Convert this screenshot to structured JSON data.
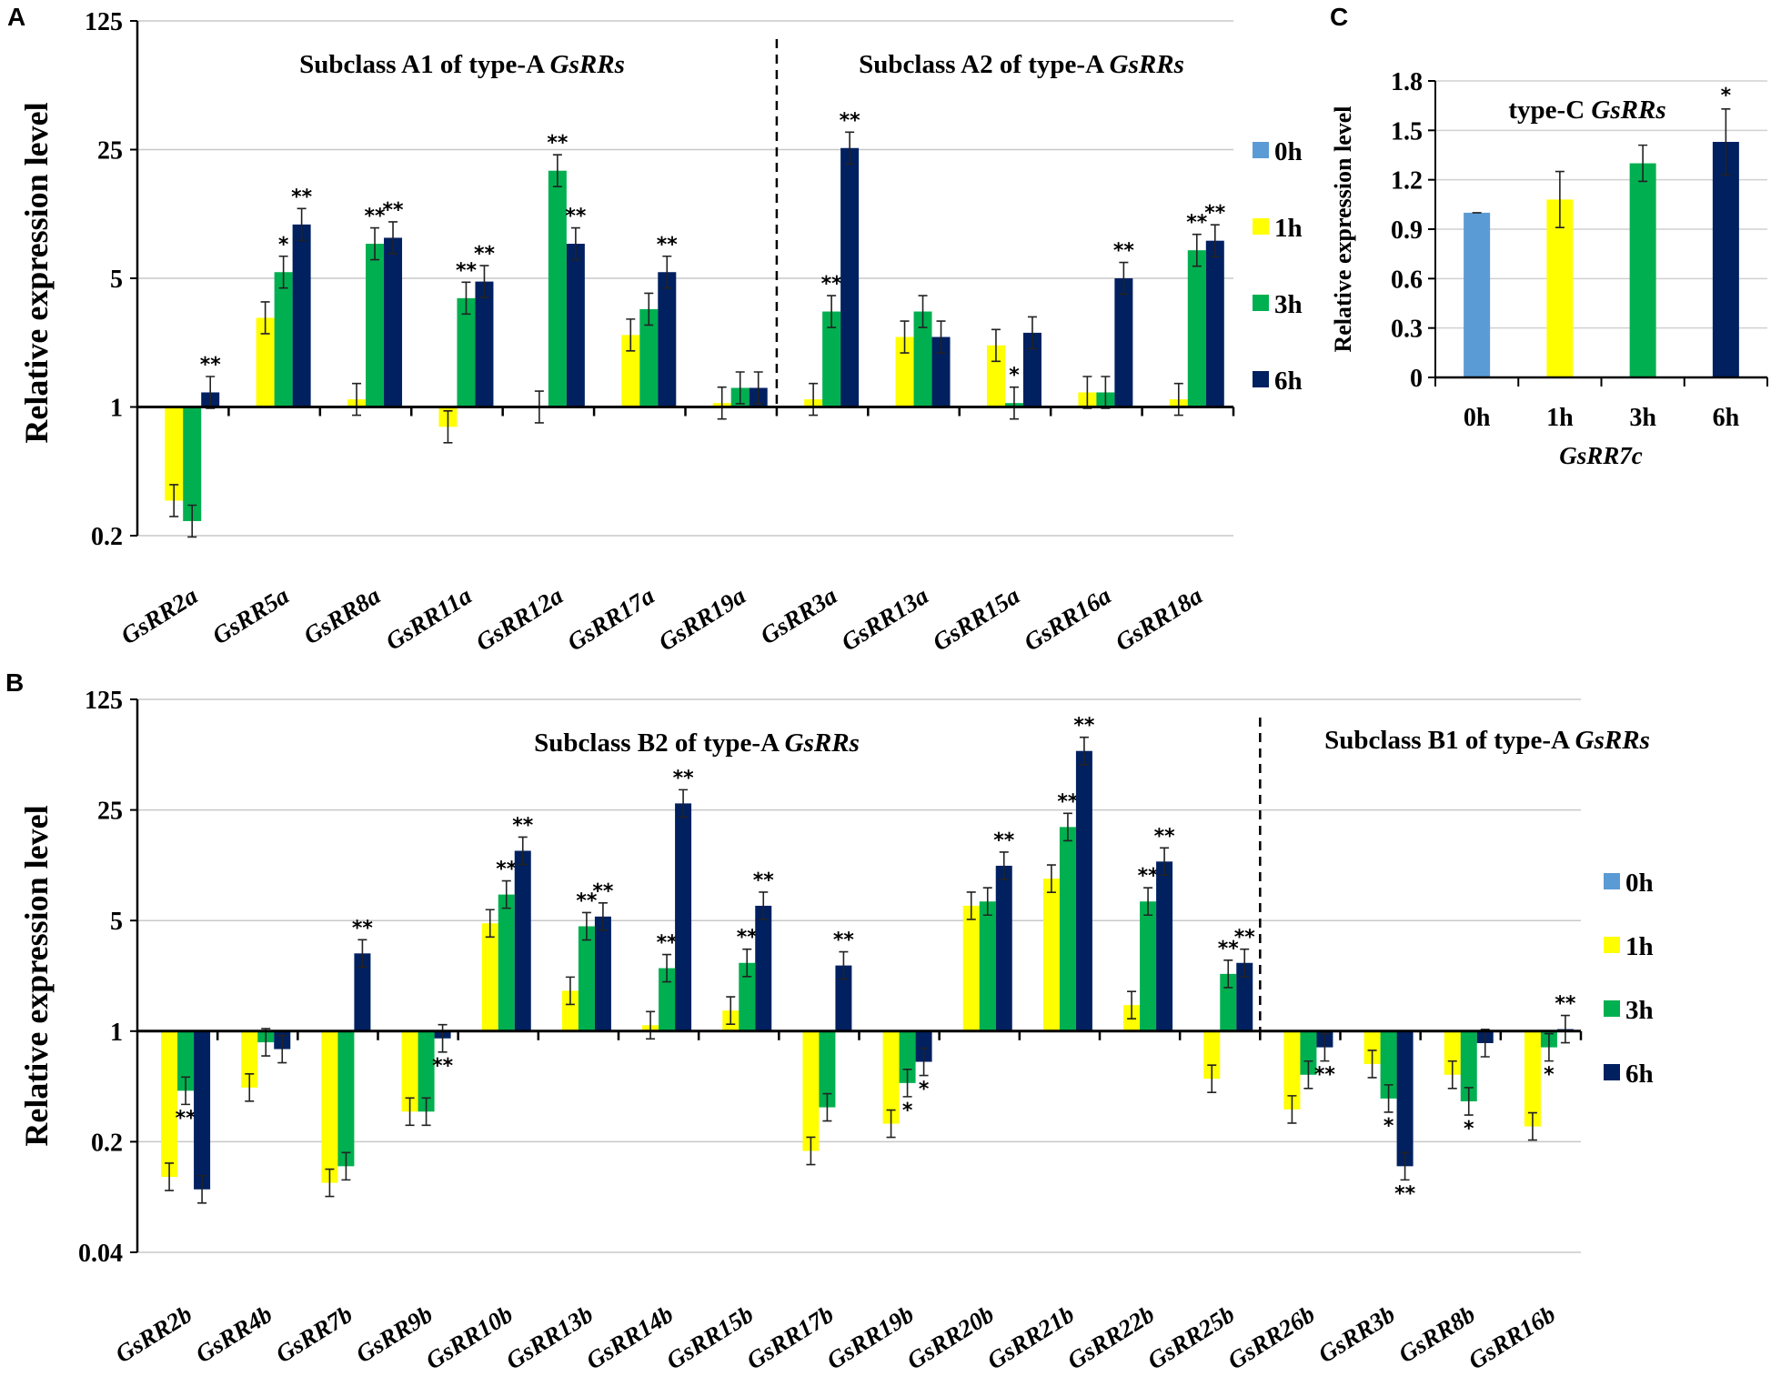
{
  "legend": [
    "0h",
    "1h",
    "3h",
    "6h"
  ],
  "colors": {
    "0h": "#5b9bd5",
    "1h": "#ffff00",
    "3h": "#00b050",
    "6h": "#002060"
  },
  "chart_data": [
    {
      "panel": "A",
      "type": "bar",
      "yscale": "log5",
      "ylabel": "Relative expression level",
      "yticks": [
        "0.2",
        "1",
        "5",
        "25",
        "125"
      ],
      "ylim": [
        0.2,
        125
      ],
      "subtitles": [
        {
          "prefix": "Subclass A1 of type-A",
          "italic": "GsRRs"
        },
        {
          "prefix": "Subclass A2 of type-A",
          "italic": "GsRRs"
        }
      ],
      "divider_after_index": 6,
      "categories": [
        "GsRR2a",
        "GsRR5a",
        "GsRR8a",
        "GsRR11a",
        "GsRR12a",
        "GsRR17a",
        "GsRR19a",
        "GsRR3a",
        "GsRR13a",
        "GsRR15a",
        "GsRR16a",
        "GsRR18a"
      ],
      "series": [
        {
          "name": "0h",
          "values": [
            1,
            1,
            1,
            1,
            1,
            1,
            1,
            1,
            1,
            1,
            1,
            1
          ]
        },
        {
          "name": "1h",
          "values": [
            0.31,
            3.05,
            1.1,
            0.78,
            1.0,
            2.46,
            1.05,
            1.1,
            2.4,
            2.16,
            1.2,
            1.1
          ]
        },
        {
          "name": "3h",
          "values": [
            0.24,
            5.4,
            7.7,
            3.9,
            19.2,
            3.4,
            1.27,
            3.3,
            3.3,
            1.05,
            1.2,
            7.1
          ]
        },
        {
          "name": "6h",
          "values": [
            1.2,
            9.8,
            8.3,
            4.8,
            7.7,
            5.4,
            1.27,
            25.5,
            2.4,
            2.53,
            5.0,
            8.0
          ]
        }
      ],
      "significance": [
        [
          "",
          "",
          "",
          "**"
        ],
        [
          "",
          "",
          "*",
          "**"
        ],
        [
          "",
          "",
          "**",
          "**"
        ],
        [
          "",
          "",
          "**",
          "**"
        ],
        [
          "",
          "",
          "**",
          "**"
        ],
        [
          "",
          "",
          "",
          "**"
        ],
        [
          "",
          "",
          "",
          ""
        ],
        [
          "",
          "",
          "**",
          "**"
        ],
        [
          "",
          "",
          "",
          ""
        ],
        [
          "",
          "",
          "*",
          ""
        ],
        [
          "",
          "",
          "",
          "**"
        ],
        [
          "",
          "",
          "**",
          "**"
        ]
      ]
    },
    {
      "panel": "B",
      "type": "bar",
      "yscale": "log5",
      "ylabel": "Relative expression level",
      "yticks": [
        "0.04",
        "0.2",
        "1",
        "5",
        "25",
        "125"
      ],
      "ylim": [
        0.04,
        125
      ],
      "subtitles": [
        {
          "prefix": "Subclass B2 of type-A",
          "italic": "GsRRs"
        },
        {
          "prefix": "Subclass B1 of type-A",
          "italic": "GsRRs"
        }
      ],
      "divider_after_index": 13,
      "categories": [
        "GsRR2b",
        "GsRR4b",
        "GsRR7b",
        "GsRR9b",
        "GsRR10b",
        "GsRR13b",
        "GsRR14b",
        "GsRR15b",
        "GsRR17b",
        "GsRR19b",
        "GsRR20b",
        "GsRR21b",
        "GsRR22b",
        "GsRR25b",
        "GsRR26b",
        "GsRR3b",
        "GsRR8b",
        "GsRR16b"
      ],
      "series": [
        {
          "name": "0h",
          "values": [
            1,
            1,
            1,
            1,
            1,
            1,
            1,
            1,
            1,
            1,
            1,
            1,
            1,
            1,
            1,
            1,
            1,
            1
          ]
        },
        {
          "name": "1h",
          "values": [
            0.12,
            0.44,
            0.11,
            0.31,
            4.8,
            1.8,
            1.09,
            1.35,
            0.175,
            0.26,
            6.2,
            9.2,
            1.46,
            0.5,
            0.32,
            0.62,
            0.53,
            0.25
          ]
        },
        {
          "name": "3h",
          "values": [
            0.42,
            0.85,
            0.14,
            0.31,
            7.3,
            4.6,
            2.5,
            2.7,
            0.33,
            0.47,
            6.6,
            19.5,
            6.6,
            2.3,
            0.53,
            0.375,
            0.36,
            0.79
          ]
        },
        {
          "name": "6h",
          "values": [
            0.1,
            0.77,
            3.1,
            0.9,
            13.8,
            5.3,
            27.5,
            6.2,
            2.6,
            0.64,
            11.1,
            59,
            11.8,
            2.7,
            0.79,
            0.14,
            0.84,
            1.03
          ]
        }
      ],
      "significance": [
        [
          "",
          "",
          "**",
          ""
        ],
        [
          "",
          "",
          "",
          ""
        ],
        [
          "",
          "",
          "",
          "**"
        ],
        [
          "",
          "",
          "",
          "**"
        ],
        [
          "",
          "",
          "**",
          "**"
        ],
        [
          "",
          "",
          "**",
          "**"
        ],
        [
          "",
          "",
          "**",
          "**"
        ],
        [
          "",
          "",
          "**",
          "**"
        ],
        [
          "",
          "",
          "",
          "**"
        ],
        [
          "",
          "",
          "*",
          "*"
        ],
        [
          "",
          "",
          "",
          "**"
        ],
        [
          "",
          "",
          "**",
          "**"
        ],
        [
          "",
          "",
          "**",
          "**"
        ],
        [
          "",
          "",
          "**",
          "**"
        ],
        [
          "",
          "",
          "",
          "**"
        ],
        [
          "",
          "",
          "*",
          "**"
        ],
        [
          "",
          "",
          "*",
          ""
        ],
        [
          "",
          "",
          "*",
          "**"
        ]
      ]
    },
    {
      "panel": "C",
      "type": "bar",
      "title": {
        "prefix": "type-C",
        "italic": "GsRRs"
      },
      "ylabel": "Relative expression level",
      "xlabel": "GsRR7c",
      "yticks": [
        "0",
        "0.3",
        "0.6",
        "0.9",
        "1.2",
        "1.5",
        "1.8"
      ],
      "ylim": [
        0,
        1.8
      ],
      "categories": [
        "0h",
        "1h",
        "3h",
        "6h"
      ],
      "values": [
        1.0,
        1.08,
        1.3,
        1.43
      ],
      "errors": [
        0.0,
        0.17,
        0.11,
        0.2
      ],
      "significance": [
        "",
        "",
        "",
        "*"
      ]
    }
  ]
}
